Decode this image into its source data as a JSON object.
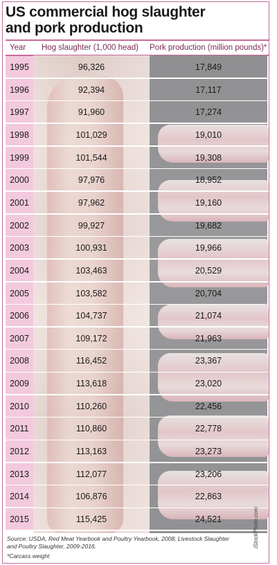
{
  "title_line1": "US commercial hog slaughter",
  "title_line2": "and pork production",
  "colors": {
    "accent": "#c56a9a",
    "year_band": "#f3c9dd",
    "header_text": "#7a2a5a"
  },
  "chart_data": {
    "type": "table",
    "title": "US commercial hog slaughter and pork production",
    "columns": [
      "Year",
      "Hog slaughter (1,000 head)",
      "Pork production (million pounds)*"
    ],
    "rows": [
      [
        "1995",
        "96,326",
        "17,849"
      ],
      [
        "1996",
        "92,394",
        "17,117"
      ],
      [
        "1997",
        "91,960",
        "17,274"
      ],
      [
        "1998",
        "101,029",
        "19,010"
      ],
      [
        "1999",
        "101,544",
        "19,308"
      ],
      [
        "2000",
        "97,976",
        "18,952"
      ],
      [
        "2001",
        "97,962",
        "19,160"
      ],
      [
        "2002",
        "99,927",
        "19,682"
      ],
      [
        "2003",
        "100,931",
        "19,966"
      ],
      [
        "2004",
        "103,463",
        "20,529"
      ],
      [
        "2005",
        "103,582",
        "20,704"
      ],
      [
        "2006",
        "104,737",
        "21,074"
      ],
      [
        "2007",
        "109,172",
        "21,963"
      ],
      [
        "2008",
        "116,452",
        "23,367"
      ],
      [
        "2009",
        "113,618",
        "23,020"
      ],
      [
        "2010",
        "110,260",
        "22,456"
      ],
      [
        "2011",
        "110,860",
        "22,778"
      ],
      [
        "2012",
        "113,163",
        "23,273"
      ],
      [
        "2013",
        "112,077",
        "23,206"
      ],
      [
        "2014",
        "106,876",
        "22,863"
      ],
      [
        "2015",
        "115,425",
        "24,521"
      ]
    ]
  },
  "footer": {
    "source": "Source: USDA, Red Meat Yearbook and Poultry Yearbook, 2008; Livestock Slaughter and Poultry Slaughter, 2009-2016.",
    "note": "*Carcass weight",
    "credit": "iStockPhoto.com"
  }
}
